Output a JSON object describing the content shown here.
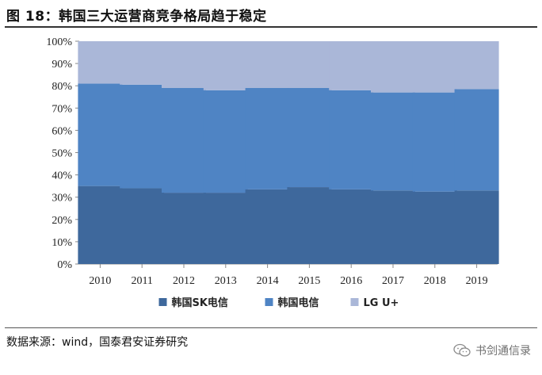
{
  "header": {
    "title": "图 18：韩国三大运营商竞争格局趋于稳定"
  },
  "footer": {
    "source": "数据来源：wind，国泰君安证券研究",
    "watermark": "书剑通信录",
    "watermark_icon": "wechat-icon"
  },
  "chart_data": {
    "type": "bar",
    "stacked": true,
    "categories": [
      "2010",
      "2011",
      "2012",
      "2013",
      "2014",
      "2015",
      "2016",
      "2017",
      "2018",
      "2019"
    ],
    "series": [
      {
        "name": "韩国SK电信",
        "color": "#3e689c",
        "values": [
          35,
          34,
          32,
          32,
          33.5,
          34.5,
          33.5,
          33,
          32.5,
          33
        ]
      },
      {
        "name": "韩国电信",
        "color": "#4f84c4",
        "values": [
          46,
          46.5,
          47,
          46,
          45.5,
          44.5,
          44.5,
          44,
          44.5,
          45.5
        ]
      },
      {
        "name": "LG U+",
        "color": "#aab7d8",
        "values": [
          19,
          19.5,
          21,
          22,
          21,
          21,
          22,
          23,
          23,
          21.5
        ]
      }
    ],
    "yticks": [
      "0%",
      "10%",
      "20%",
      "30%",
      "40%",
      "50%",
      "60%",
      "70%",
      "80%",
      "90%",
      "100%"
    ],
    "ylim": [
      0,
      100
    ],
    "grid": false,
    "legend_position": "bottom"
  }
}
